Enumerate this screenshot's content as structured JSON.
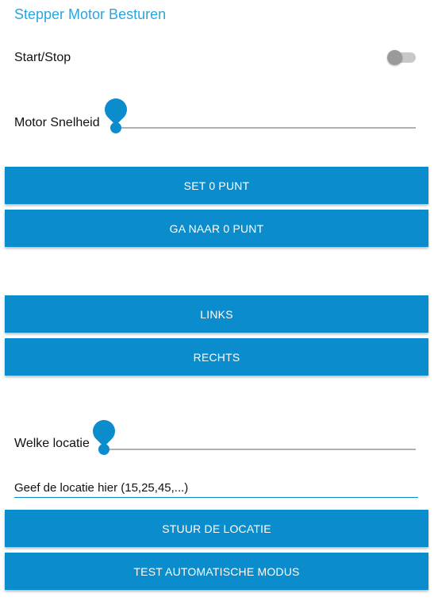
{
  "title": "Stepper Motor Besturen",
  "start_stop": {
    "label": "Start/Stop",
    "on": false
  },
  "motor_speed": {
    "label": "Motor Snelheid",
    "value_fraction": 0
  },
  "location_slider": {
    "label": "Welke locatie",
    "value_fraction": 0
  },
  "buttons": {
    "set_zero": "SET 0 PUNT",
    "goto_zero": "GA NAAR 0 PUNT",
    "left": "LINKS",
    "right": "RECHTS",
    "send_location": "STUUR DE LOCATIE",
    "test_auto": "TEST AUTOMATISCHE MODUS"
  },
  "location_input": {
    "value": "Geef de locatie hier (15,25,45,...)"
  },
  "colors": {
    "accent": "#0a8ccd",
    "title": "#29a6df",
    "toggle_off_thumb": "#9a9a9a",
    "toggle_off_track": "#c8c8c8"
  }
}
